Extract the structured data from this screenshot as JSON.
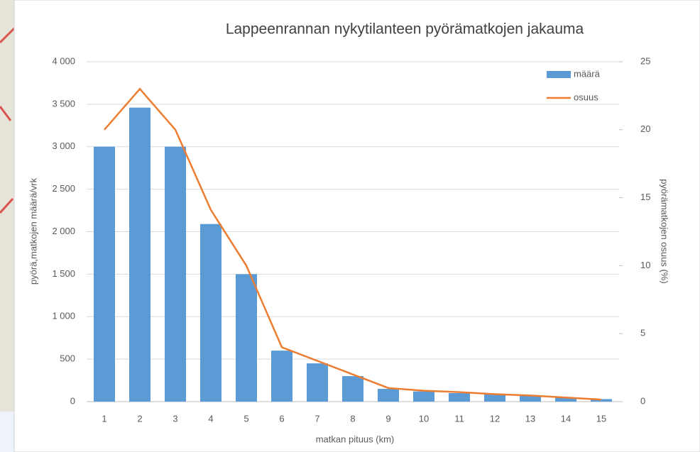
{
  "chart_data": {
    "type": "bar_line",
    "title": "Lappeenrannan nykytilanteen pyörämatkojen jakauma",
    "xlabel": "matkan pituus (km)",
    "ylabel": "pyörä,matkojen määrä/vrk",
    "y2label": "pyörämatkojen osuus (%)",
    "categories": [
      "1",
      "2",
      "3",
      "4",
      "5",
      "6",
      "7",
      "8",
      "9",
      "10",
      "11",
      "12",
      "13",
      "14",
      "15"
    ],
    "series": [
      {
        "name": "määrä",
        "type": "bar",
        "color": "#5b9bd5",
        "values": [
          3000,
          3460,
          3000,
          2090,
          1500,
          600,
          450,
          300,
          150,
          120,
          100,
          90,
          70,
          50,
          30
        ]
      },
      {
        "name": "osuus",
        "type": "line",
        "axis": "y2",
        "color": "#ed7d31",
        "values": [
          20,
          23,
          20,
          14.1,
          10,
          4,
          3,
          2,
          1,
          0.8,
          0.7,
          0.55,
          0.45,
          0.3,
          0.15
        ]
      }
    ],
    "ylim": [
      0,
      4000
    ],
    "yticks": [
      0,
      500,
      {
        "value": 1000,
        "label": "1 000"
      },
      {
        "value": 1500,
        "label": "1 500"
      },
      {
        "value": 2000,
        "label": "2 000"
      },
      {
        "value": 2500,
        "label": "2 500"
      },
      {
        "value": 3000,
        "label": "3 000"
      },
      {
        "value": 3500,
        "label": "3 500"
      },
      {
        "value": 4000,
        "label": "4 000"
      }
    ],
    "y2lim": [
      0,
      25
    ],
    "y2ticks": [
      0,
      5,
      10,
      15,
      20,
      25
    ],
    "grid": true,
    "legend": "top-right"
  }
}
